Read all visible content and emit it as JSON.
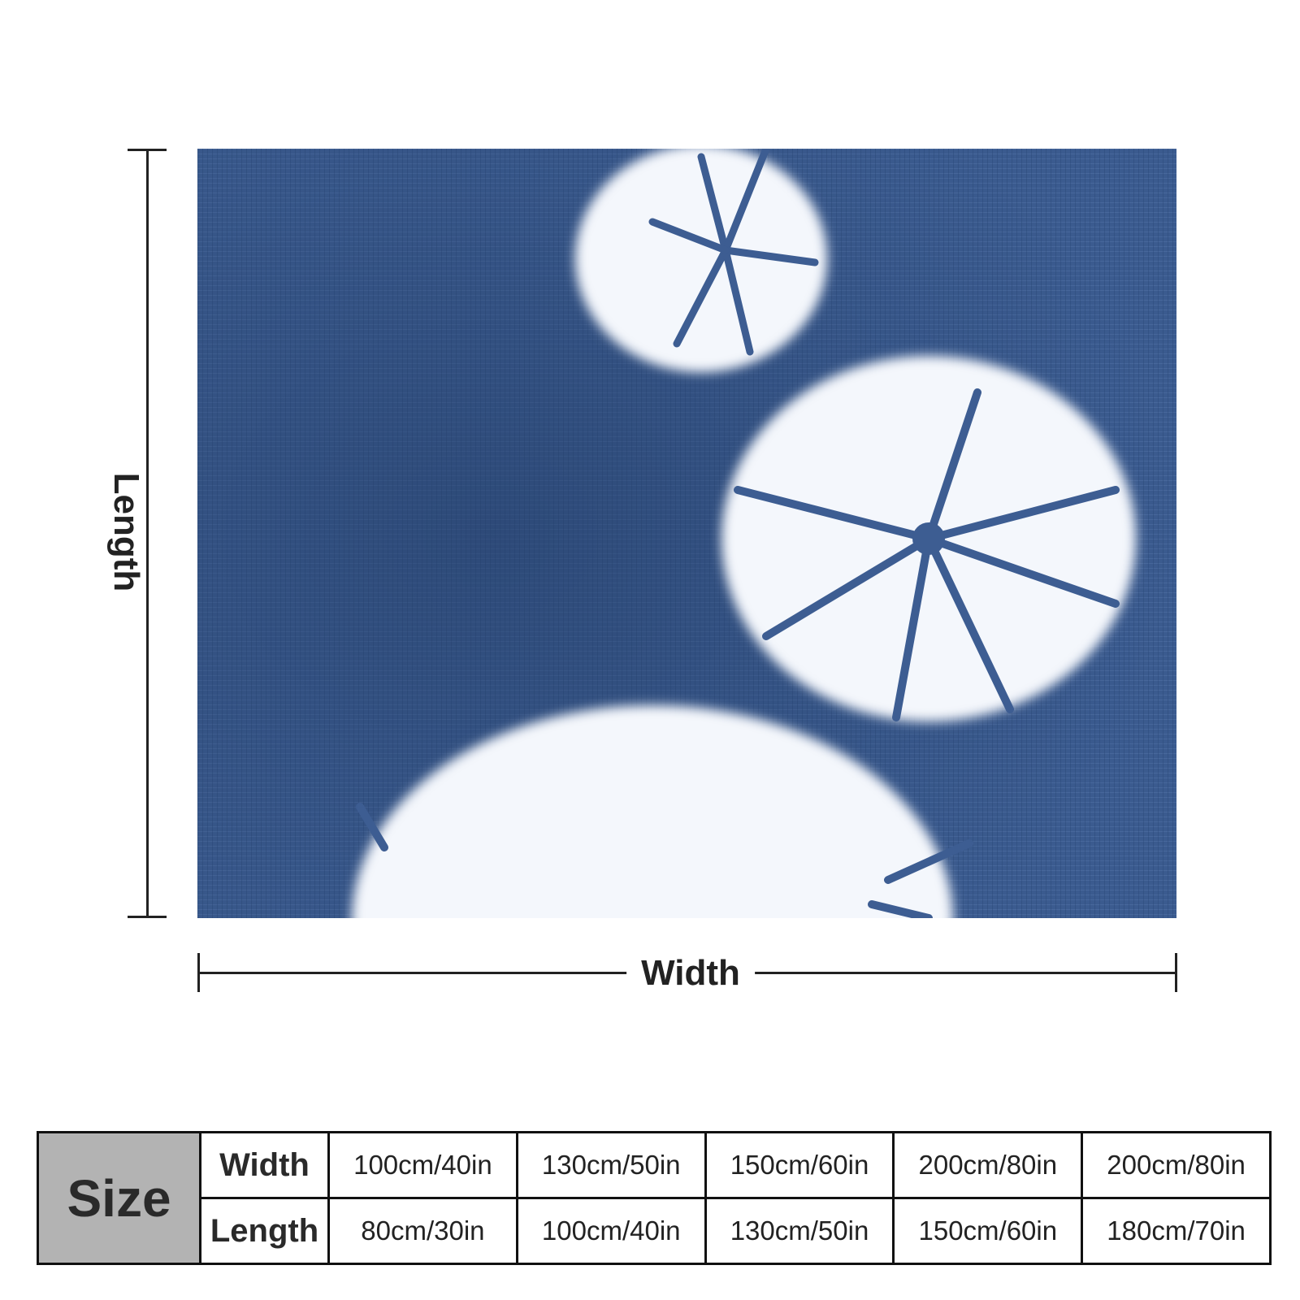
{
  "product": {
    "image_name": "indigo shibori tie-dye blanket artwork",
    "colors": {
      "indigo": "#3a5a8e",
      "indigo_dark": "#2c4878",
      "white": "#f6f8fc"
    }
  },
  "dimensions": {
    "length_label": "Length",
    "width_label": "Width"
  },
  "size_table": {
    "size_label": "Size",
    "width_label": "Width",
    "length_label": "Length",
    "widths": [
      "100cm/40in",
      "130cm/50in",
      "150cm/60in",
      "200cm/80in",
      "200cm/80in"
    ],
    "lengths": [
      "80cm/30in",
      "100cm/40in",
      "130cm/50in",
      "150cm/60in",
      "180cm/70in"
    ]
  }
}
